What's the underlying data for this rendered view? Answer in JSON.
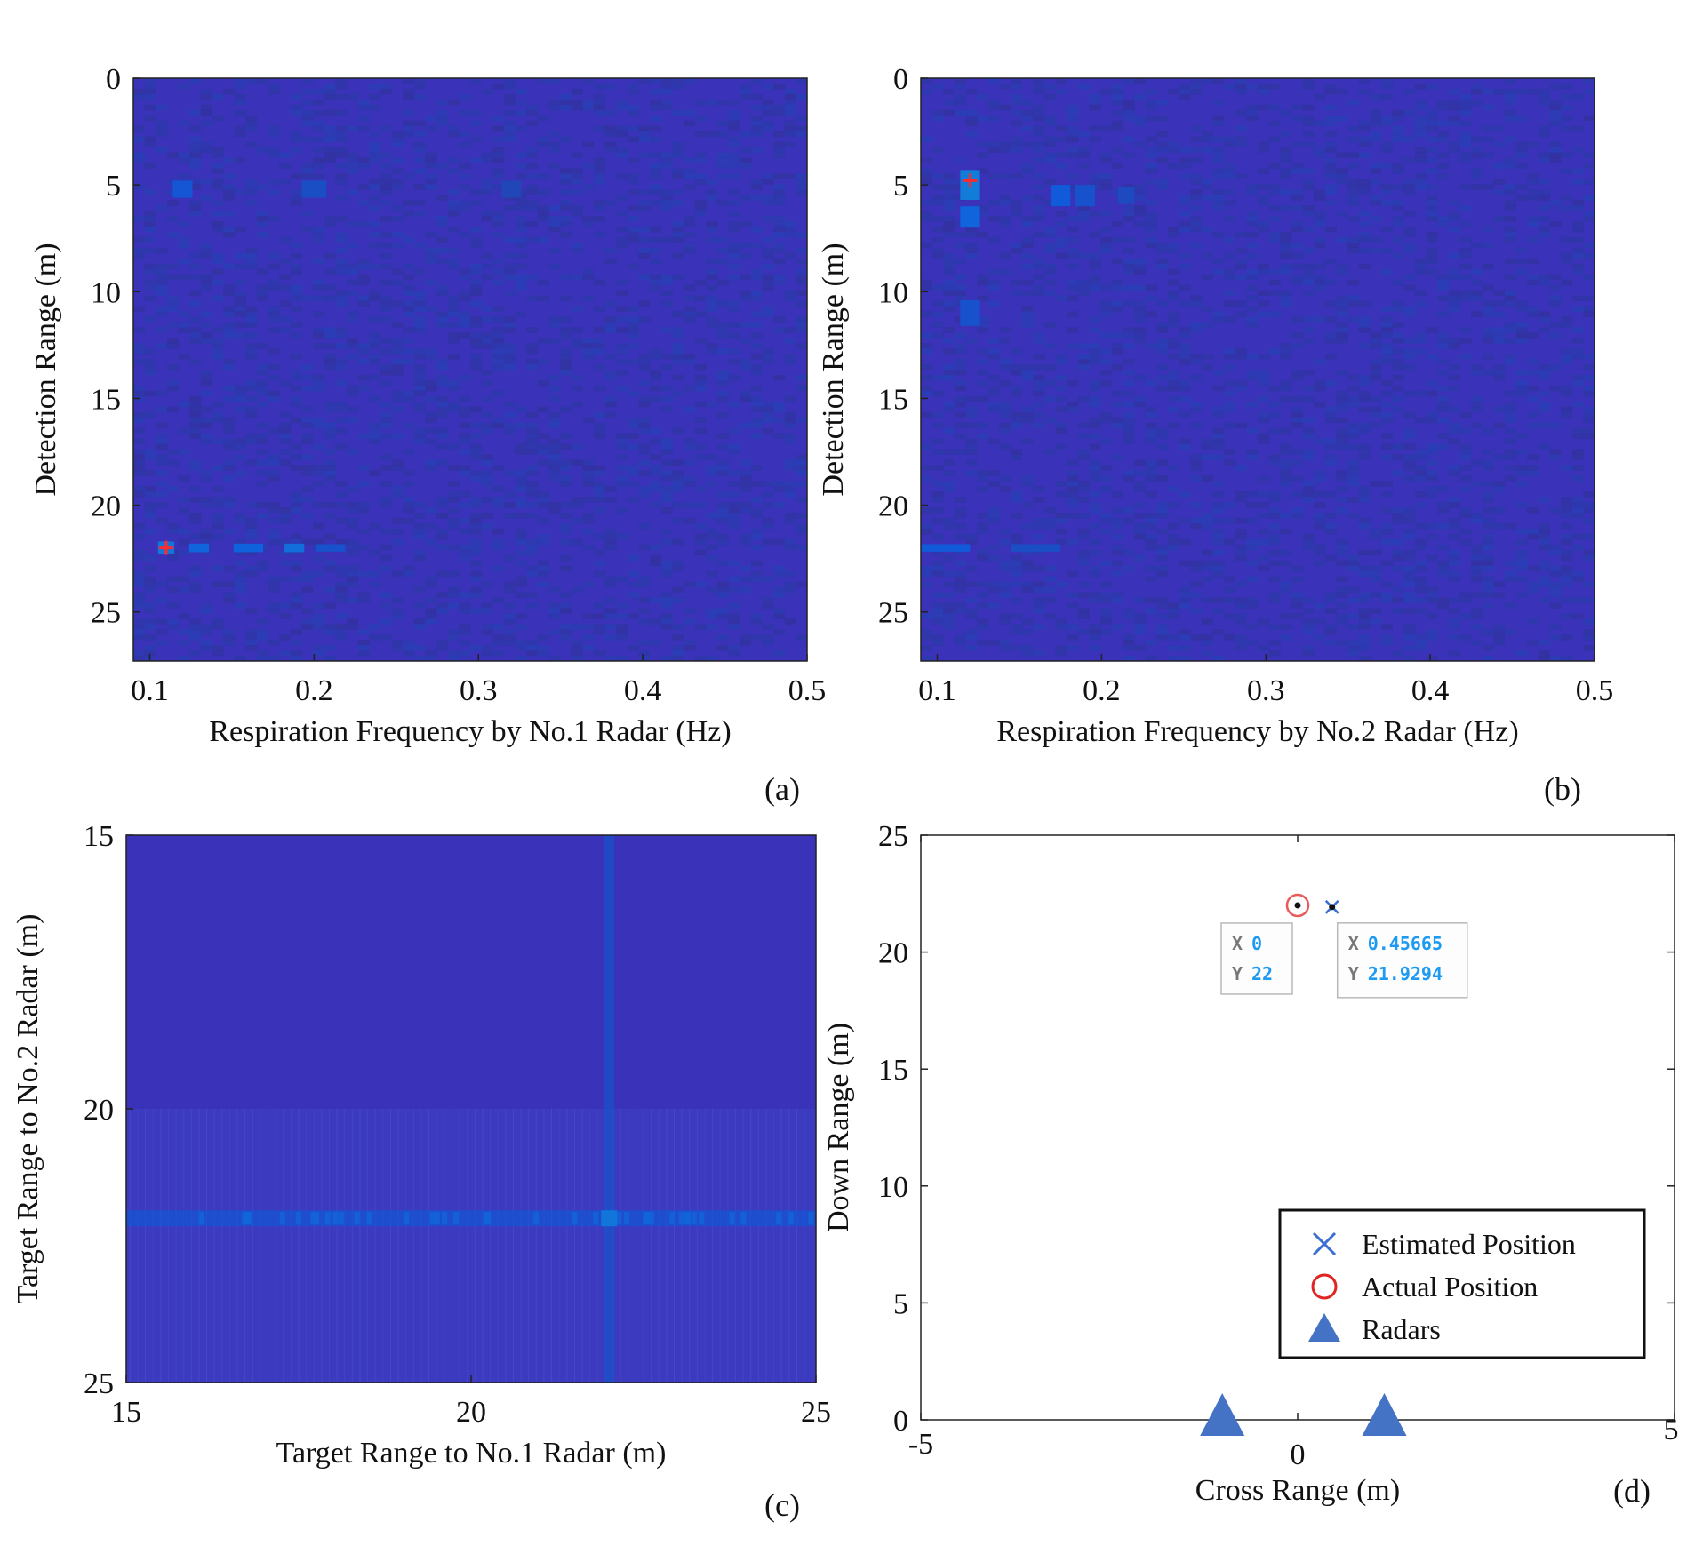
{
  "chart_data": [
    {
      "id": "a",
      "type": "heatmap",
      "panel_label": "(a)",
      "xlabel": "Respiration Frequency by No.1 Radar (Hz)",
      "ylabel": "Detection Range (m)",
      "xlim": [
        0.09,
        0.5
      ],
      "ylim": [
        0,
        27.3
      ],
      "y_reversed": true,
      "xticks": [
        0.1,
        0.2,
        0.3,
        0.4,
        0.5
      ],
      "xtick_labels": [
        "0.1",
        "0.2",
        "0.3",
        "0.4",
        "0.5"
      ],
      "yticks": [
        0,
        5,
        10,
        15,
        20,
        25
      ],
      "ytick_labels": [
        "0",
        "5",
        "10",
        "15",
        "20",
        "25"
      ],
      "colormap": "parula",
      "background_color": "#3a32b8",
      "hotspots": [
        {
          "x": 0.11,
          "y": 22,
          "x_span": 0.01,
          "y_span": 0.6,
          "level": 0.4,
          "label": "peak"
        },
        {
          "x": 0.13,
          "y": 22,
          "x_span": 0.012,
          "y_span": 0.4,
          "level": 0.3
        },
        {
          "x": 0.16,
          "y": 22,
          "x_span": 0.018,
          "y_span": 0.4,
          "level": 0.28
        },
        {
          "x": 0.188,
          "y": 22,
          "x_span": 0.012,
          "y_span": 0.4,
          "level": 0.36
        },
        {
          "x": 0.21,
          "y": 22,
          "x_span": 0.018,
          "y_span": 0.35,
          "level": 0.2
        },
        {
          "x": 0.12,
          "y": 5.2,
          "x_span": 0.012,
          "y_span": 0.8,
          "level": 0.22
        },
        {
          "x": 0.2,
          "y": 5.2,
          "x_span": 0.015,
          "y_span": 0.8,
          "level": 0.18
        },
        {
          "x": 0.32,
          "y": 5.2,
          "x_span": 0.012,
          "y_span": 0.8,
          "level": 0.14
        }
      ],
      "markers": [
        {
          "x": 0.11,
          "y": 22,
          "symbol": "plus",
          "color": "#ff2a2a"
        }
      ]
    },
    {
      "id": "b",
      "type": "heatmap",
      "panel_label": "(b)",
      "xlabel": "Respiration Frequency by No.2 Radar (Hz)",
      "ylabel": "Detection Range (m)",
      "xlim": [
        0.09,
        0.5
      ],
      "ylim": [
        0,
        27.3
      ],
      "y_reversed": true,
      "xticks": [
        0.1,
        0.2,
        0.3,
        0.4,
        0.5
      ],
      "xtick_labels": [
        "0.1",
        "0.2",
        "0.3",
        "0.4",
        "0.5"
      ],
      "yticks": [
        0,
        5,
        10,
        15,
        20,
        25
      ],
      "ytick_labels": [
        "0",
        "5",
        "10",
        "15",
        "20",
        "25"
      ],
      "colormap": "parula",
      "background_color": "#3a32b8",
      "hotspots": [
        {
          "x": 0.12,
          "y": 5,
          "x_span": 0.012,
          "y_span": 1.4,
          "level": 0.45,
          "label": "peak"
        },
        {
          "x": 0.12,
          "y": 6.5,
          "x_span": 0.012,
          "y_span": 1.0,
          "level": 0.3
        },
        {
          "x": 0.12,
          "y": 11,
          "x_span": 0.012,
          "y_span": 1.2,
          "level": 0.2
        },
        {
          "x": 0.175,
          "y": 5.5,
          "x_span": 0.012,
          "y_span": 1.0,
          "level": 0.24
        },
        {
          "x": 0.19,
          "y": 5.5,
          "x_span": 0.012,
          "y_span": 1.0,
          "level": 0.2
        },
        {
          "x": 0.215,
          "y": 5.5,
          "x_span": 0.01,
          "y_span": 0.8,
          "level": 0.16
        },
        {
          "x": 0.105,
          "y": 22,
          "x_span": 0.03,
          "y_span": 0.35,
          "level": 0.24
        },
        {
          "x": 0.16,
          "y": 22,
          "x_span": 0.03,
          "y_span": 0.35,
          "level": 0.18
        }
      ],
      "markers": [
        {
          "x": 0.12,
          "y": 4.8,
          "symbol": "plus",
          "color": "#ff2a2a"
        }
      ]
    },
    {
      "id": "c",
      "type": "heatmap",
      "panel_label": "(c)",
      "xlabel": "Target Range to No.1 Radar (m)",
      "ylabel": "Target Range to No.2 Radar (m)",
      "xlim": [
        15,
        25
      ],
      "ylim": [
        15,
        25
      ],
      "y_reversed": true,
      "xticks": [
        15,
        20,
        25
      ],
      "xtick_labels": [
        "15",
        "20",
        "25"
      ],
      "yticks": [
        15,
        20,
        25
      ],
      "ytick_labels": [
        "15",
        "20",
        "25"
      ],
      "colormap": "parula",
      "background_color": "#3a32b8",
      "ridges": [
        {
          "orientation": "horizontal",
          "at": 22,
          "level": 0.22
        },
        {
          "orientation": "vertical",
          "at": 22,
          "level": 0.2
        }
      ],
      "peak": {
        "x": 22,
        "y": 22,
        "level": 0.4
      }
    },
    {
      "id": "d",
      "type": "scatter",
      "panel_label": "(d)",
      "xlabel": "Cross Range (m)",
      "ylabel": "Down Range (m)",
      "xlim": [
        -5,
        5
      ],
      "ylim": [
        0,
        25
      ],
      "xticks": [
        -5,
        0,
        5
      ],
      "xtick_labels": [
        "-5",
        "0",
        "5"
      ],
      "yticks": [
        0,
        5,
        10,
        15,
        20,
        25
      ],
      "ytick_labels": [
        "0",
        "5",
        "10",
        "15",
        "20",
        "25"
      ],
      "series": [
        {
          "name": "Estimated Position",
          "marker": "x",
          "color": "#3b6fd1",
          "points": [
            {
              "x": 0.45665,
              "y": 21.9294
            }
          ]
        },
        {
          "name": "Actual Position",
          "marker": "o",
          "color": "#e02424",
          "points": [
            {
              "x": 0,
              "y": 22
            }
          ]
        },
        {
          "name": "Radars",
          "marker": "triangle",
          "color": "#4472c4",
          "points": [
            {
              "x": -1,
              "y": 0
            },
            {
              "x": 1.15,
              "y": 0
            }
          ]
        }
      ],
      "legend": [
        "Estimated Position",
        "Actual Position",
        "Radars"
      ],
      "legend_position": "bottom-right",
      "datatips": [
        {
          "x_label": "X",
          "x_value": "0",
          "y_label": "Y",
          "y_value": "22",
          "anchor_x": 0,
          "anchor_y": 22
        },
        {
          "x_label": "X",
          "x_value": "0.45665",
          "y_label": "Y",
          "y_value": "21.9294",
          "anchor_x": 0.45665,
          "anchor_y": 21.9294
        }
      ]
    }
  ]
}
